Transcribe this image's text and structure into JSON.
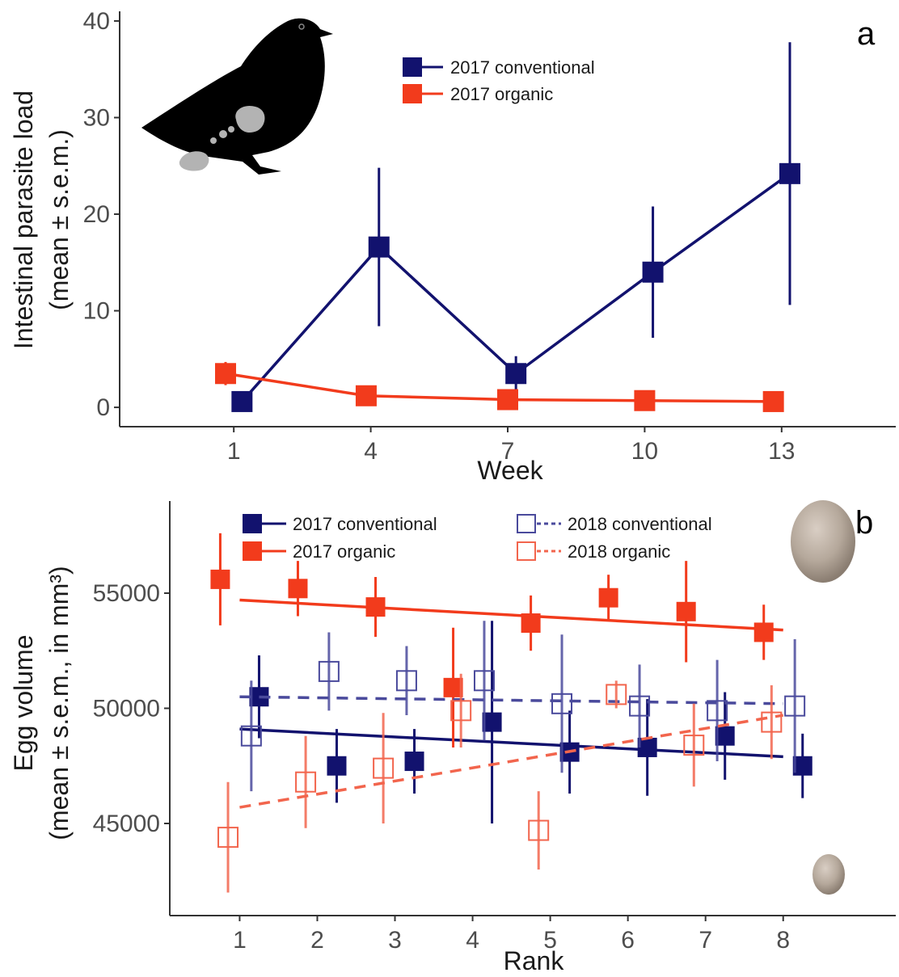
{
  "colors": {
    "conventional_2017": "#12126e",
    "organic_2017": "#f23b1c",
    "conventional_2018": "#4a4a9c",
    "organic_2018": "#f2654d",
    "axis": "#333333"
  },
  "chart_data": [
    {
      "type": "line",
      "panel_label": "a",
      "xlabel": "Week",
      "ylabel": "Intestinal parasite load",
      "ylabel_sub": "(mean ± s.e.m.)",
      "x_ticks": [
        1,
        4,
        7,
        10,
        13
      ],
      "y_ticks": [
        0,
        10,
        20,
        30,
        40
      ],
      "xlim": [
        -1.5,
        15.5
      ],
      "ylim": [
        -2,
        41
      ],
      "icon": "grouse-silhouette-icon",
      "legend": [
        {
          "label": "2017 conventional",
          "series": "2017 conventional"
        },
        {
          "label": "2017 organic",
          "series": "2017 organic"
        }
      ],
      "series": [
        {
          "name": "2017 conventional",
          "color_key": "conventional_2017",
          "filled": true,
          "x": [
            1,
            4,
            7,
            10,
            13
          ],
          "x_offset": [
            0.18,
            0.18,
            0.18,
            0.18,
            0.18
          ],
          "y": [
            0.6,
            16.6,
            3.5,
            14.0,
            24.2
          ],
          "sem": [
            0.3,
            8.2,
            1.8,
            6.8,
            13.6
          ]
        },
        {
          "name": "2017 organic",
          "color_key": "organic_2017",
          "filled": true,
          "x": [
            1,
            4,
            7,
            10,
            13
          ],
          "x_offset": [
            -0.18,
            -0.1,
            0.0,
            0.0,
            -0.18
          ],
          "y": [
            3.5,
            1.2,
            0.8,
            0.7,
            0.6
          ],
          "sem": [
            1.2,
            0.3,
            0.25,
            0.25,
            0.2
          ]
        }
      ]
    },
    {
      "type": "scatter",
      "panel_label": "b",
      "xlabel": "Rank",
      "ylabel": "Egg volume",
      "ylabel_sub": "(mean ± s.e.m., in mm³)",
      "x_ticks": [
        1,
        2,
        3,
        4,
        5,
        6,
        7,
        8
      ],
      "y_ticks": [
        45000,
        50000,
        55000
      ],
      "xlim": [
        0.1,
        9.45
      ],
      "ylim": [
        41000,
        59000
      ],
      "icon": "egg-icon",
      "legend": [
        {
          "label": "2017 conventional",
          "series": "2017 conventional"
        },
        {
          "label": "2017 organic",
          "series": "2017 organic"
        },
        {
          "label": "2018 conventional",
          "series": "2018 conventional"
        },
        {
          "label": "2018 organic",
          "series": "2018 organic"
        }
      ],
      "series": [
        {
          "name": "2017 conventional",
          "color_key": "conventional_2017",
          "filled": true,
          "dashed": false,
          "x": [
            1,
            2,
            3,
            4,
            5,
            6,
            7,
            8
          ],
          "x_offset": [
            0.25,
            0.25,
            0.25,
            0.25,
            0.25,
            0.25,
            0.25,
            0.25
          ],
          "y": [
            50500,
            47500,
            47700,
            49400,
            48100,
            48300,
            48800,
            47500
          ],
          "sem": [
            1800,
            1600,
            1400,
            4400,
            1800,
            2100,
            1900,
            1400
          ],
          "trend": [
            49100,
            47900
          ]
        },
        {
          "name": "2017 organic",
          "color_key": "organic_2017",
          "filled": true,
          "dashed": false,
          "x": [
            1,
            2,
            3,
            4,
            5,
            6,
            7,
            8
          ],
          "x_offset": [
            -0.25,
            -0.25,
            -0.25,
            -0.25,
            -0.25,
            -0.25,
            -0.25,
            -0.25
          ],
          "y": [
            55600,
            55200,
            54400,
            50900,
            53700,
            54800,
            54200,
            53300
          ],
          "sem": [
            2000,
            1200,
            1300,
            2600,
            1200,
            1000,
            2200,
            1200
          ],
          "trend": [
            54700,
            53400
          ]
        },
        {
          "name": "2018 conventional",
          "color_key": "conventional_2018",
          "filled": false,
          "dashed": true,
          "x": [
            1,
            2,
            3,
            4,
            5,
            6,
            7,
            8
          ],
          "x_offset": [
            0.15,
            0.15,
            0.15,
            0.15,
            0.15,
            0.15,
            0.15,
            0.15
          ],
          "y": [
            48800,
            51600,
            51200,
            51200,
            50200,
            50100,
            49900,
            50100
          ],
          "sem": [
            2400,
            1700,
            1500,
            2600,
            3000,
            1800,
            2200,
            2900
          ],
          "trend": [
            50500,
            50200
          ]
        },
        {
          "name": "2018 organic",
          "color_key": "organic_2018",
          "filled": false,
          "dashed": true,
          "x": [
            1,
            2,
            3,
            4,
            5,
            6,
            7,
            8
          ],
          "x_offset": [
            -0.15,
            -0.15,
            -0.15,
            -0.15,
            -0.15,
            -0.15,
            -0.15,
            -0.15
          ],
          "y": [
            44400,
            46800,
            47400,
            49900,
            44700,
            50600,
            48400,
            49400
          ],
          "sem": [
            2400,
            2000,
            2400,
            1600,
            1700,
            600,
            1800,
            1600
          ],
          "trend": [
            45700,
            49700
          ]
        }
      ]
    }
  ]
}
